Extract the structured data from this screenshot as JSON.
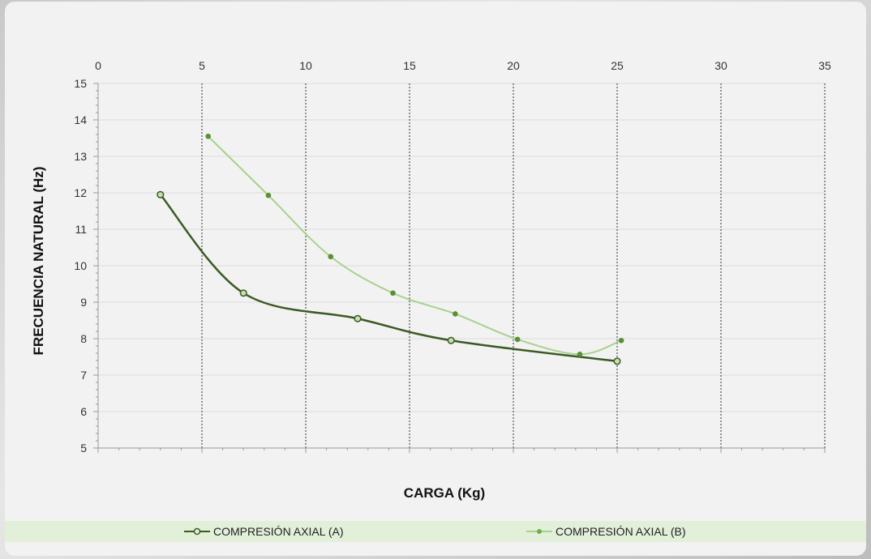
{
  "chart_data": {
    "type": "line",
    "title": "",
    "xlabel": "CARGA (Kg)",
    "ylabel": "FRECUENCIA NATURAL (Hz)",
    "xlim": [
      0,
      35
    ],
    "ylim": [
      5,
      15
    ],
    "x_ticks": [
      "0",
      "5",
      "10",
      "15",
      "20",
      "25",
      "30",
      "35"
    ],
    "y_ticks": [
      "5",
      "6",
      "7",
      "8",
      "9",
      "10",
      "11",
      "12",
      "13",
      "14",
      "15"
    ],
    "x_axis_position": "top",
    "vertical_gridlines": "dashed",
    "horizontal_gridlines": "solid",
    "legend_position": "bottom",
    "series": [
      {
        "name": "COMPRESIÓN AXIAL (A)",
        "color": "#3b5a23",
        "marker": "hollow-circle",
        "x": [
          3,
          7,
          12.5,
          17,
          25
        ],
        "y": [
          11.95,
          9.25,
          8.55,
          7.95,
          7.38
        ]
      },
      {
        "name": "COMPRESIÓN AXIAL (B)",
        "color": "#a9d18e",
        "marker": "filled-dot",
        "x": [
          5.3,
          8.2,
          11.2,
          14.2,
          17.2,
          20.2,
          23.2,
          25.2
        ],
        "y": [
          13.55,
          11.93,
          10.25,
          9.25,
          8.68,
          7.98,
          7.57,
          7.95
        ]
      }
    ]
  }
}
